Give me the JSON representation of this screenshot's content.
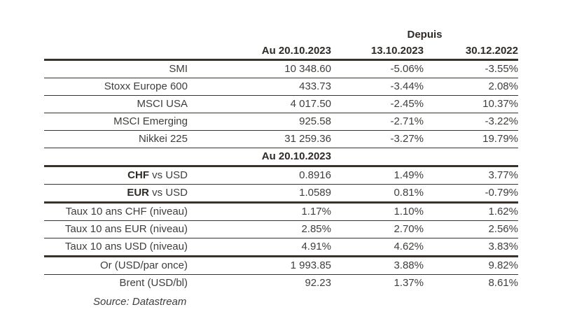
{
  "colors": {
    "rule": "#37332b",
    "text": "#3f3e3c",
    "strong": "#2e2b27"
  },
  "header": {
    "depuis": "Depuis",
    "columns": [
      "Au 20.10.2023",
      "13.10.2023",
      "30.12.2022"
    ]
  },
  "section_divider": {
    "label": "Au 20.10.2023"
  },
  "rows": [
    {
      "label": "SMI",
      "value": "10 348.60",
      "since_prev": "-5.06%",
      "since_ytd": "-3.55%"
    },
    {
      "label": "Stoxx Europe 600",
      "value": "433.73",
      "since_prev": "-3.44%",
      "since_ytd": "2.08%"
    },
    {
      "label": "MSCI USA",
      "value": "4 017.50",
      "since_prev": "-2.45%",
      "since_ytd": "10.37%"
    },
    {
      "label": "MSCI Emerging",
      "value": "925.58",
      "since_prev": "-2.71%",
      "since_ytd": "-3.22%"
    },
    {
      "label": "Nikkei 225",
      "value": "31 259.36",
      "since_prev": "-3.27%",
      "since_ytd": "19.79%"
    },
    {
      "label_bold": "CHF",
      "label_rest": " vs USD",
      "value": "0.8916",
      "since_prev": "1.49%",
      "since_ytd": "3.77%"
    },
    {
      "label_bold": "EUR",
      "label_rest": " vs USD",
      "value": "1.0589",
      "since_prev": "0.81%",
      "since_ytd": "-0.79%"
    },
    {
      "label": "Taux 10 ans CHF (niveau)",
      "value": "1.17%",
      "since_prev": "1.10%",
      "since_ytd": "1.62%"
    },
    {
      "label": "Taux 10 ans EUR (niveau)",
      "value": "2.85%",
      "since_prev": "2.70%",
      "since_ytd": "2.56%"
    },
    {
      "label": "Taux 10 ans USD (niveau)",
      "value": "4.91%",
      "since_prev": "4.62%",
      "since_ytd": "3.83%"
    },
    {
      "label": "Or (USD/par once)",
      "value": "1 993.85",
      "since_prev": "3.88%",
      "since_ytd": "9.82%"
    },
    {
      "label": "Brent (USD/bl)",
      "value": "92.23",
      "since_prev": "1.37%",
      "since_ytd": "8.61%"
    }
  ],
  "source": "Source: Datastream"
}
